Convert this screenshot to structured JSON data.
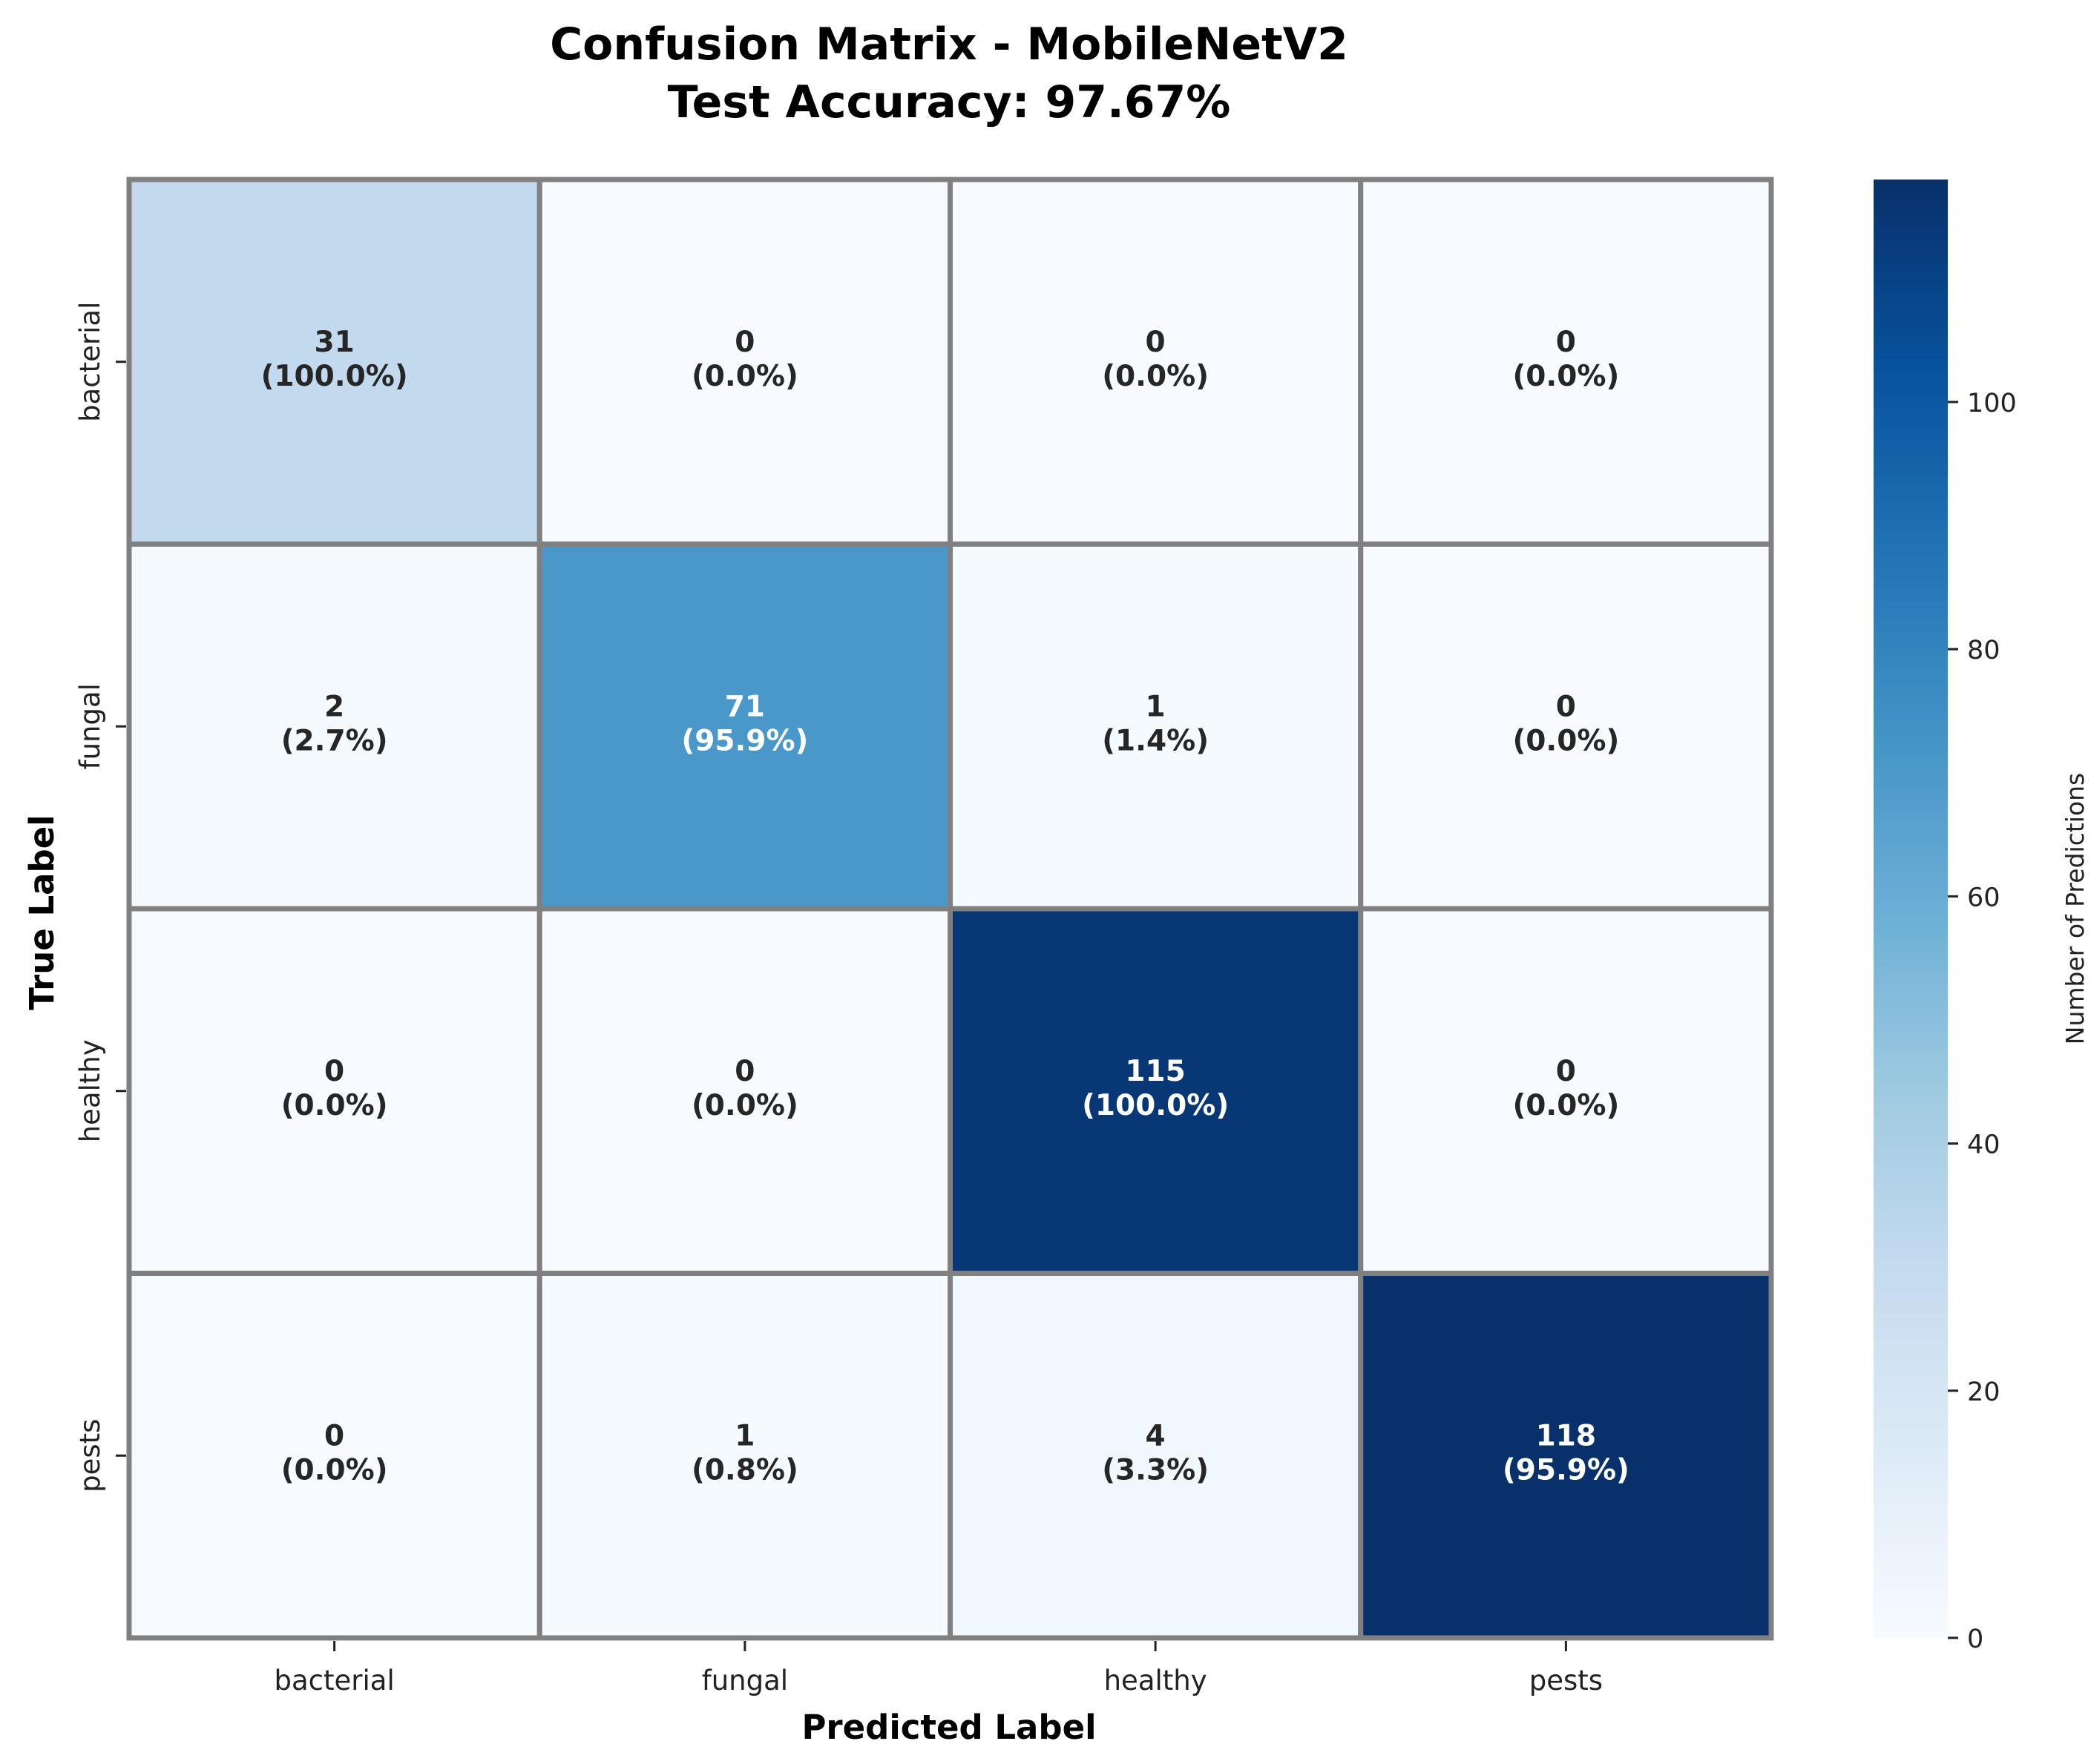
{
  "chart_data": {
    "type": "heatmap",
    "title_line1": "Confusion Matrix - MobileNetV2",
    "title_line2": "Test Accuracy: 97.67%",
    "xlabel": "Predicted Label",
    "ylabel": "True Label",
    "x_categories": [
      "bacterial",
      "fungal",
      "healthy",
      "pests"
    ],
    "y_categories": [
      "bacterial",
      "fungal",
      "healthy",
      "pests"
    ],
    "values": [
      [
        31,
        0,
        0,
        0
      ],
      [
        2,
        71,
        1,
        0
      ],
      [
        0,
        0,
        115,
        0
      ],
      [
        0,
        1,
        4,
        118
      ]
    ],
    "percentages": [
      [
        "(100.0%)",
        "(0.0%)",
        "(0.0%)",
        "(0.0%)"
      ],
      [
        "(2.7%)",
        "(95.9%)",
        "(1.4%)",
        "(0.0%)"
      ],
      [
        "(0.0%)",
        "(0.0%)",
        "(100.0%)",
        "(0.0%)"
      ],
      [
        "(0.0%)",
        "(0.8%)",
        "(3.3%)",
        "(95.9%)"
      ]
    ],
    "colorbar": {
      "label": "Number of Predictions",
      "min": 0,
      "max": 118,
      "ticks": [
        0,
        20,
        40,
        60,
        80,
        100
      ],
      "colormap": "Blues"
    },
    "grid_line_color": "#808080"
  }
}
